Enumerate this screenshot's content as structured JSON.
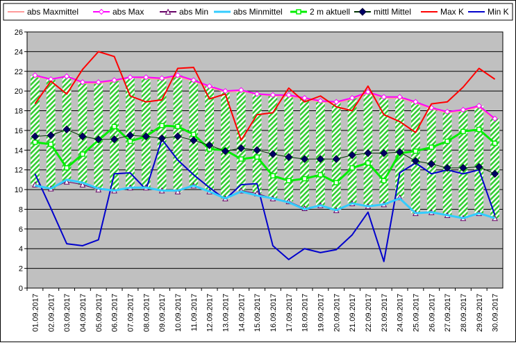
{
  "chart_data": {
    "type": "line",
    "title": "",
    "xlabel": "",
    "ylabel": "",
    "ylim": [
      0,
      26
    ],
    "ytick_step": 2,
    "grid": "horizontal",
    "legend_position": "top",
    "plot_background": "#c0c0c0",
    "band_fill": "#33cc33",
    "categories": [
      "01.09.2017",
      "02.09.2017",
      "03.09.2017",
      "04.09.2017",
      "05.09.2017",
      "06.09.2017",
      "07.09.2017",
      "08.09.2017",
      "09.09.2017",
      "10.09.2017",
      "11.09.2017",
      "12.09.2017",
      "13.09.2017",
      "14.09.2017",
      "15.09.2017",
      "16.09.2017",
      "17.09.2017",
      "18.09.2017",
      "19.09.2017",
      "20.09.2017",
      "21.09.2017",
      "22.09.2017",
      "23.09.2017",
      "24.09.2017",
      "25.09.2017",
      "26.09.2017",
      "27.09.2017",
      "28.09.2017",
      "29.09.2017",
      "30.09.2017"
    ],
    "series": [
      {
        "name": "abs Maxmittel",
        "color": "#ff9999",
        "marker": "none",
        "width": 2,
        "values": [
          21.5,
          21.2,
          21.5,
          20.8,
          20.8,
          21.0,
          21.4,
          21.3,
          21.2,
          21.5,
          21.0,
          20.4,
          19.9,
          20.0,
          19.7,
          19.5,
          19.5,
          19.2,
          18.9,
          18.8,
          19.2,
          19.8,
          19.3,
          19.3,
          18.8,
          18.2,
          17.8,
          18.0,
          18.4,
          17.1
        ]
      },
      {
        "name": "abs Max",
        "color": "#ff00ff",
        "marker": "diamond-open",
        "width": 2,
        "values": [
          21.6,
          21.2,
          21.5,
          20.9,
          20.9,
          21.1,
          21.4,
          21.4,
          21.3,
          21.6,
          21.1,
          20.5,
          20.0,
          20.1,
          19.7,
          19.6,
          19.6,
          19.3,
          19.0,
          18.9,
          19.3,
          19.9,
          19.4,
          19.4,
          18.9,
          18.3,
          17.9,
          18.1,
          18.5,
          17.2
        ]
      },
      {
        "name": "abs Min",
        "color": "#660066",
        "marker": "triangle-open",
        "width": 1,
        "values": [
          10.5,
          10.1,
          10.8,
          10.5,
          10.0,
          9.9,
          10.2,
          10.2,
          9.9,
          9.8,
          10.4,
          9.8,
          9.1,
          9.9,
          9.6,
          9.1,
          8.8,
          8.1,
          8.4,
          7.9,
          8.6,
          8.3,
          8.5,
          9.2,
          7.6,
          7.7,
          7.4,
          7.1,
          7.6,
          7.1
        ]
      },
      {
        "name": "abs Minmittel",
        "color": "#33ccff",
        "marker": "none",
        "width": 3,
        "values": [
          10.4,
          10.1,
          11.0,
          10.7,
          10.1,
          9.9,
          10.2,
          10.2,
          9.9,
          9.9,
          10.4,
          9.8,
          9.1,
          9.8,
          9.4,
          9.1,
          8.7,
          8.0,
          8.4,
          7.9,
          8.6,
          8.3,
          8.5,
          9.1,
          7.6,
          7.7,
          7.4,
          7.1,
          7.6,
          7.1
        ]
      },
      {
        "name": "2 m aktuell",
        "color": "#00ee00",
        "marker": "square-open",
        "width": 3,
        "values": [
          14.8,
          14.6,
          12.2,
          13.6,
          15.0,
          16.4,
          14.9,
          15.4,
          16.5,
          16.4,
          15.6,
          14.1,
          14.0,
          13.1,
          13.3,
          11.4,
          10.9,
          11.1,
          11.5,
          10.7,
          12.2,
          12.7,
          10.9,
          13.7,
          13.9,
          14.3,
          14.9,
          15.9,
          16.1,
          14.7
        ]
      },
      {
        "name": "mittl Mittel",
        "color": "#003300",
        "marker": "diamond-filled",
        "width": 1,
        "values": [
          15.4,
          15.5,
          16.1,
          15.4,
          15.1,
          15.1,
          15.5,
          15.4,
          15.2,
          15.4,
          15.0,
          14.5,
          13.9,
          14.2,
          14.0,
          13.6,
          13.3,
          13.1,
          13.1,
          13.1,
          13.5,
          13.7,
          13.7,
          13.8,
          12.9,
          12.6,
          12.2,
          12.2,
          12.3,
          11.6
        ]
      },
      {
        "name": "Max K",
        "color": "#ff0000",
        "marker": "none",
        "width": 2,
        "values": [
          18.7,
          21.0,
          19.7,
          22.2,
          24.0,
          23.5,
          19.5,
          18.9,
          19.1,
          22.3,
          22.4,
          19.2,
          19.7,
          15.0,
          17.6,
          17.8,
          20.3,
          18.9,
          19.5,
          18.4,
          18.0,
          20.5,
          17.6,
          16.9,
          15.8,
          18.7,
          18.9,
          20.4,
          22.3,
          21.2
        ]
      },
      {
        "name": "Min K",
        "color": "#0000cc",
        "marker": "none",
        "width": 2,
        "values": [
          11.6,
          8.1,
          4.5,
          4.3,
          4.9,
          11.6,
          11.7,
          10.0,
          15.1,
          13.0,
          11.5,
          10.2,
          9.0,
          10.5,
          10.6,
          4.3,
          2.9,
          4.0,
          3.6,
          3.9,
          5.4,
          7.7,
          2.7,
          11.7,
          12.7,
          11.6,
          12.0,
          11.6,
          12.0,
          7.4
        ]
      }
    ]
  }
}
